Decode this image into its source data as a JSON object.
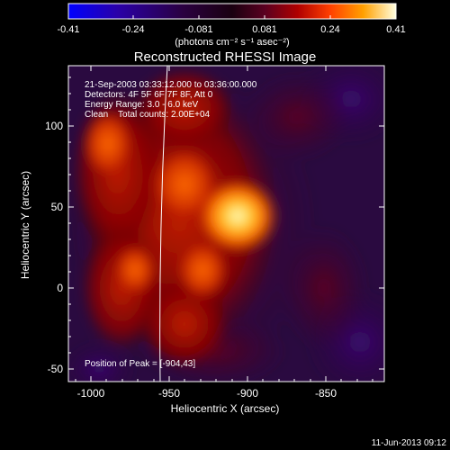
{
  "colorbar": {
    "tick_labels": [
      "-0.41",
      "-0.24",
      "-0.081",
      "0.081",
      "0.24",
      "0.41"
    ],
    "units_label": "(photons cm⁻² s⁻¹ asec⁻²)",
    "gradient_colors": [
      "#0000ff",
      "#2a00a8",
      "#2a0040",
      "#000000",
      "#3a0030",
      "#7a0000",
      "#d02000",
      "#ff8000",
      "#ffe000",
      "#ffffd0"
    ]
  },
  "image": {
    "title": "Reconstructed RHESSI Image",
    "info_lines": [
      "21-Sep-2003 03:33:12.000 to 03:36:00.000",
      "Detectors: 4F 5F 6F 7F 8F, Att 0",
      "Energy Range: 3.0 - 6.0 keV",
      "Clean    Total counts: 2.00E+04"
    ],
    "peak_label": "Position of Peak = [-904,43]",
    "xlabel": "Heliocentric X (arcsec)",
    "ylabel": "Heliocentric Y (arcsec)",
    "x_tick_labels": [
      "-1000",
      "-950",
      "-900",
      "-850"
    ],
    "y_tick_labels": [
      "-50",
      "0",
      "50",
      "100"
    ],
    "limb_color": "#ffffff"
  },
  "footer": {
    "timestamp": "11-Jun-2013 09:12"
  }
}
